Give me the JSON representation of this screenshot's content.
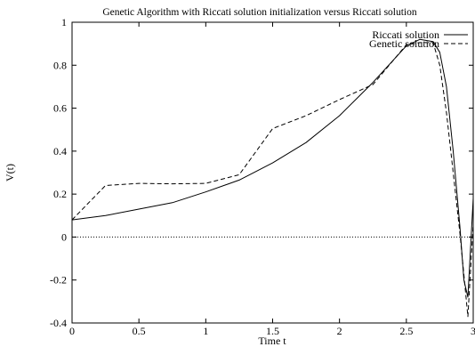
{
  "chart_data": {
    "type": "line",
    "title": "Genetic Algorithm with Riccati solution initialization versus Riccati solution",
    "xlabel": "Time t",
    "ylabel": "V(t)",
    "xlim": [
      0,
      3
    ],
    "ylim": [
      -0.4,
      1
    ],
    "xticks": [
      0,
      0.5,
      1,
      1.5,
      2,
      2.5,
      3
    ],
    "xtick_labels": [
      "0",
      "0.5",
      "1",
      "1.5",
      "2",
      "2.5",
      "3"
    ],
    "yticks": [
      -0.4,
      -0.2,
      0,
      0.2,
      0.4,
      0.6,
      0.8,
      1
    ],
    "ytick_labels": [
      "-0.4",
      "-0.2",
      "0",
      "0.2",
      "0.4",
      "0.6",
      "0.8",
      "1"
    ],
    "grid": false,
    "legend_position": "top-right",
    "zero_line": true,
    "series": [
      {
        "name": "Riccati solution",
        "style": "solid",
        "color": "#000000",
        "x": [
          0,
          0.25,
          0.5,
          0.75,
          1.0,
          1.25,
          1.5,
          1.75,
          2.0,
          2.25,
          2.5,
          2.6,
          2.7,
          2.75,
          2.8,
          2.85,
          2.9,
          2.93,
          2.96,
          3.0
        ],
        "y": [
          0.08,
          0.1,
          0.13,
          0.16,
          0.21,
          0.265,
          0.345,
          0.44,
          0.565,
          0.72,
          0.89,
          0.92,
          0.91,
          0.86,
          0.7,
          0.4,
          0.05,
          -0.2,
          -0.28,
          0.18
        ]
      },
      {
        "name": "Genetic solution",
        "style": "dashed",
        "color": "#000000",
        "x": [
          0,
          0.25,
          0.5,
          0.75,
          1.0,
          1.25,
          1.5,
          1.75,
          2.0,
          2.25,
          2.5,
          2.6,
          2.7,
          2.75,
          2.8,
          2.85,
          2.9,
          2.96,
          3.0
        ],
        "y": [
          0.08,
          0.24,
          0.25,
          0.248,
          0.25,
          0.29,
          0.505,
          0.565,
          0.64,
          0.71,
          0.895,
          0.905,
          0.905,
          0.8,
          0.58,
          0.3,
          0.02,
          -0.37,
          0.06
        ]
      }
    ]
  }
}
